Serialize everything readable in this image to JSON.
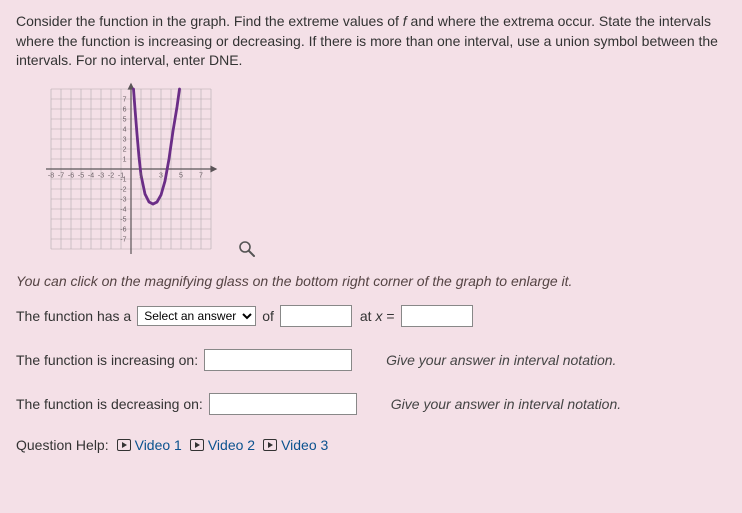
{
  "question": "Consider the function in the graph. Find the extreme values of f and where the extrema occur. State the intervals where the function is increasing or decreasing. If there is more than one interval, use a union symbol between the intervals. For no interval, enter DNE.",
  "graph": {
    "xlim": [
      -8,
      8
    ],
    "ylim": [
      -8,
      8
    ],
    "xtick_step": 1,
    "ytick_step": 1,
    "background_color": "#f4e0e7",
    "grid_color": "#b3a9ad",
    "axis_color": "#5b5558",
    "ytick_labels": [
      {
        "y": 1,
        "text": "1"
      },
      {
        "y": 2,
        "text": "2"
      },
      {
        "y": 3,
        "text": "3"
      },
      {
        "y": 4,
        "text": "4"
      },
      {
        "y": 5,
        "text": "5"
      },
      {
        "y": 6,
        "text": "6"
      },
      {
        "y": 7,
        "text": "7"
      },
      {
        "y": -1,
        "text": "-1"
      },
      {
        "y": -2,
        "text": "-2"
      },
      {
        "y": -3,
        "text": "-3"
      },
      {
        "y": -4,
        "text": "-4"
      },
      {
        "y": -5,
        "text": "-5"
      },
      {
        "y": -6,
        "text": "-6"
      },
      {
        "y": -7,
        "text": "-7"
      }
    ],
    "xtick_labels": [
      {
        "x": 1,
        "text": "1"
      },
      {
        "x": 3,
        "text": "3"
      },
      {
        "x": 5,
        "text": "5"
      },
      {
        "x": 7,
        "text": "7"
      },
      {
        "x": -1,
        "text": "-1"
      },
      {
        "x": -2,
        "text": "-2"
      },
      {
        "x": -3,
        "text": "-3"
      },
      {
        "x": -4,
        "text": "-4"
      },
      {
        "x": -5,
        "text": "-5"
      },
      {
        "x": -6,
        "text": "-6"
      },
      {
        "x": -7,
        "text": "-7"
      },
      {
        "x": -8,
        "text": "-8"
      }
    ],
    "curve": {
      "type": "line",
      "color": "#6b2d87",
      "width": 2.5,
      "points": [
        [
          0.25,
          8
        ],
        [
          0.4,
          6
        ],
        [
          0.6,
          3.5
        ],
        [
          0.8,
          1.2
        ],
        [
          1.0,
          -0.6
        ],
        [
          1.4,
          -2.5
        ],
        [
          1.8,
          -3.3
        ],
        [
          2.2,
          -3.5
        ],
        [
          2.6,
          -3.3
        ],
        [
          3.0,
          -2.6
        ],
        [
          3.4,
          -1.2
        ],
        [
          3.8,
          1.0
        ],
        [
          4.2,
          3.8
        ],
        [
          4.6,
          6.2
        ],
        [
          4.85,
          8
        ]
      ]
    }
  },
  "hint": "You can click on the magnifying glass on the bottom right corner of the graph to enlarge it.",
  "row1": {
    "prefix": "The function has a",
    "select_placeholder": "Select an answer",
    "mid": "of",
    "at_label": "at x ="
  },
  "row_increasing": {
    "label": "The function is increasing on:",
    "after": "Give your answer in interval notation."
  },
  "row_decreasing": {
    "label": "The function is decreasing on:",
    "after": "Give your answer in interval notation."
  },
  "help": {
    "label": "Question Help:",
    "links": [
      "Video 1",
      "Video 2",
      "Video 3"
    ]
  }
}
